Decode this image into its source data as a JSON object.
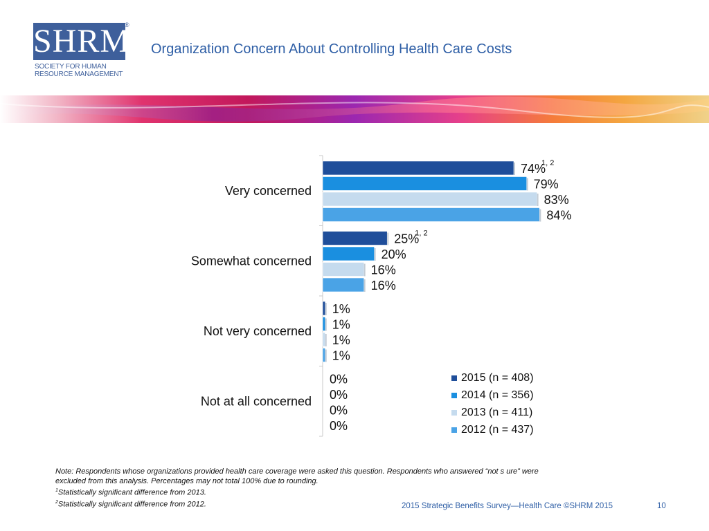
{
  "logo": {
    "word": "SHRM",
    "registered": "®",
    "line1": "SOCIETY FOR HUMAN",
    "line2": "RESOURCE MANAGEMENT"
  },
  "title": "Organization Concern About Controlling Health Care Costs",
  "colors": {
    "title": "#2f5fa6",
    "s2015": "#1f4e9a",
    "s2014": "#1a8fe0",
    "s2013": "#c5dbee",
    "s2012": "#4aa3e6"
  },
  "chart_data": {
    "type": "bar",
    "orientation": "horizontal",
    "categories": [
      "Very concerned",
      "Somewhat concerned",
      "Not very concerned",
      "Not at all concerned"
    ],
    "series": [
      {
        "name": "2015 (n = 408)",
        "values": [
          74,
          25,
          1,
          0
        ],
        "labels": [
          "74%",
          "25%",
          "1%",
          "0%"
        ],
        "superscripts": [
          "1, 2",
          "1, 2",
          "",
          ""
        ]
      },
      {
        "name": "2014 (n = 356)",
        "values": [
          79,
          20,
          1,
          0
        ],
        "labels": [
          "79%",
          "20%",
          "1%",
          "0%"
        ],
        "superscripts": [
          "",
          "",
          "",
          ""
        ]
      },
      {
        "name": "2013 (n = 411)",
        "values": [
          83,
          16,
          1,
          0
        ],
        "labels": [
          "83%",
          "16%",
          "1%",
          "0%"
        ],
        "superscripts": [
          "",
          "",
          "",
          ""
        ]
      },
      {
        "name": "2012 (n = 437)",
        "values": [
          84,
          16,
          1,
          0
        ],
        "labels": [
          "84%",
          "16%",
          "1%",
          "0%"
        ],
        "superscripts": [
          "",
          "",
          "",
          ""
        ]
      }
    ],
    "xlim": [
      0,
      100
    ],
    "grid": false,
    "legend": "bottom-right"
  },
  "note": {
    "line1": "Note: Respondents whose organizations provided health care coverage were asked this question. Respondents who answered “not s ure” were",
    "line2": "excluded from this analysis. Percentages may not total 100% due to rounding.",
    "fn1_mark": "1",
    "fn1": "Statistically significant difference from 2013.",
    "fn2_mark": "2",
    "fn2": "Statistically significant difference from 2012."
  },
  "footer": "2015 Strategic Benefits Survey—Health Care ©SHRM 2015",
  "page_number": "10"
}
